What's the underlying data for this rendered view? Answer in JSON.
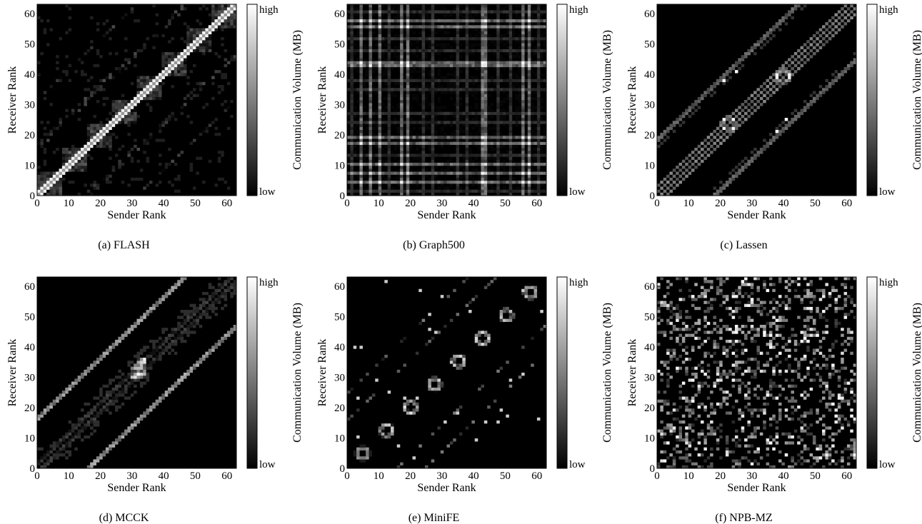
{
  "chart_data": [
    {
      "type": "heatmap",
      "caption": "(a) FLASH",
      "pattern": "flash",
      "xlabel": "Sender Rank",
      "ylabel": "Receiver Rank",
      "x_ticks": [
        "0",
        "10",
        "20",
        "30",
        "40",
        "50",
        "60"
      ],
      "y_ticks": [
        "0",
        "10",
        "20",
        "30",
        "40",
        "50",
        "60"
      ],
      "xlim": [
        0,
        63
      ],
      "ylim": [
        0,
        63
      ],
      "colorbar": {
        "label": "Communication Volume (MB)",
        "high": "high",
        "low": "low"
      }
    },
    {
      "type": "heatmap",
      "caption": "(b) Graph500",
      "pattern": "graph500",
      "xlabel": "Sender Rank",
      "ylabel": "Receiver Rank",
      "x_ticks": [
        "0",
        "10",
        "20",
        "30",
        "40",
        "50",
        "60"
      ],
      "y_ticks": [
        "0",
        "10",
        "20",
        "30",
        "40",
        "50",
        "60"
      ],
      "xlim": [
        0,
        63
      ],
      "ylim": [
        0,
        63
      ],
      "colorbar": {
        "label": "Communication Volume (MB)",
        "high": "high",
        "low": "low"
      }
    },
    {
      "type": "heatmap",
      "caption": "(c) Lassen",
      "pattern": "lassen",
      "xlabel": "Sender Rank",
      "ylabel": "Receiver Rank",
      "x_ticks": [
        "0",
        "10",
        "20",
        "30",
        "40",
        "50",
        "60"
      ],
      "y_ticks": [
        "0",
        "10",
        "20",
        "30",
        "40",
        "50",
        "60"
      ],
      "xlim": [
        0,
        63
      ],
      "ylim": [
        0,
        63
      ],
      "colorbar": {
        "label": "Communication Volume (MB)",
        "high": "high",
        "low": "low"
      }
    },
    {
      "type": "heatmap",
      "caption": "(d) MCCK",
      "pattern": "mcck",
      "xlabel": "Sender Rank",
      "ylabel": "Receiver Rank",
      "x_ticks": [
        "0",
        "10",
        "20",
        "30",
        "40",
        "50",
        "60"
      ],
      "y_ticks": [
        "0",
        "10",
        "20",
        "30",
        "40",
        "50",
        "60"
      ],
      "xlim": [
        0,
        63
      ],
      "ylim": [
        0,
        63
      ],
      "colorbar": {
        "label": "Communication Volume (MB)",
        "high": "high",
        "low": "low"
      }
    },
    {
      "type": "heatmap",
      "caption": "(e) MiniFE",
      "pattern": "minife",
      "xlabel": "Sender Rank",
      "ylabel": "Receiver Rank",
      "x_ticks": [
        "0",
        "10",
        "20",
        "30",
        "40",
        "50",
        "60"
      ],
      "y_ticks": [
        "0",
        "10",
        "20",
        "30",
        "40",
        "50",
        "60"
      ],
      "xlim": [
        0,
        63
      ],
      "ylim": [
        0,
        63
      ],
      "colorbar": {
        "label": "Communication Volume (MB)",
        "high": "high",
        "low": "low"
      }
    },
    {
      "type": "heatmap",
      "caption": "(f) NPB-MZ",
      "pattern": "npbmz",
      "xlabel": "Sender Rank",
      "ylabel": "Receiver Rank",
      "x_ticks": [
        "0",
        "10",
        "20",
        "30",
        "40",
        "50",
        "60"
      ],
      "y_ticks": [
        "0",
        "10",
        "20",
        "30",
        "40",
        "50",
        "60"
      ],
      "xlim": [
        0,
        63
      ],
      "ylim": [
        0,
        63
      ],
      "colorbar": {
        "label": "Communication Volume (MB)",
        "high": "high",
        "low": "low"
      }
    }
  ]
}
